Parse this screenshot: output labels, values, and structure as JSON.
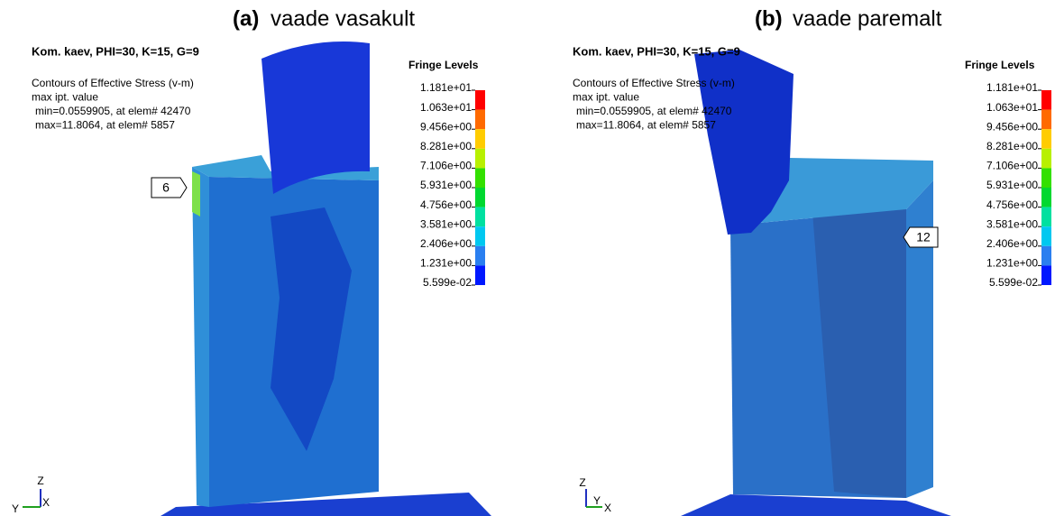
{
  "panels": [
    {
      "label": "(a)",
      "caption": "vaade vasakult",
      "title": "Kom. kaev, PHI=30, K=15, G=9",
      "contour_lines": [
        "Contours of Effective Stress (v-m)",
        "max ipt. value",
        "min=0.0559905, at elem# 42470",
        "max=11.8064, at elem# 5857"
      ],
      "fringe_title": "Fringe Levels",
      "fringe_levels": [
        "1.181e+01",
        "1.063e+01",
        "9.456e+00",
        "8.281e+00",
        "7.106e+00",
        "5.931e+00",
        "4.756e+00",
        "3.581e+00",
        "2.406e+00",
        "1.231e+00",
        "5.599e-02"
      ],
      "callout": "6",
      "axes": [
        "Z",
        "Y",
        "X"
      ]
    },
    {
      "label": "(b)",
      "caption": "vaade paremalt",
      "title": "Kom. kaev, PHI=30, K=15, G=9",
      "contour_lines": [
        "Contours of Effective Stress (v-m)",
        "max ipt. value",
        "min=0.0559905, at elem# 42470",
        "max=11.8064, at elem# 5857"
      ],
      "fringe_title": "Fringe Levels",
      "fringe_levels": [
        "1.181e+01",
        "1.063e+01",
        "9.456e+00",
        "8.281e+00",
        "7.106e+00",
        "5.931e+00",
        "4.756e+00",
        "3.581e+00",
        "2.406e+00",
        "1.231e+00",
        "5.599e-02"
      ],
      "callout": "12",
      "axes": [
        "Z",
        "Y",
        "X"
      ]
    }
  ]
}
